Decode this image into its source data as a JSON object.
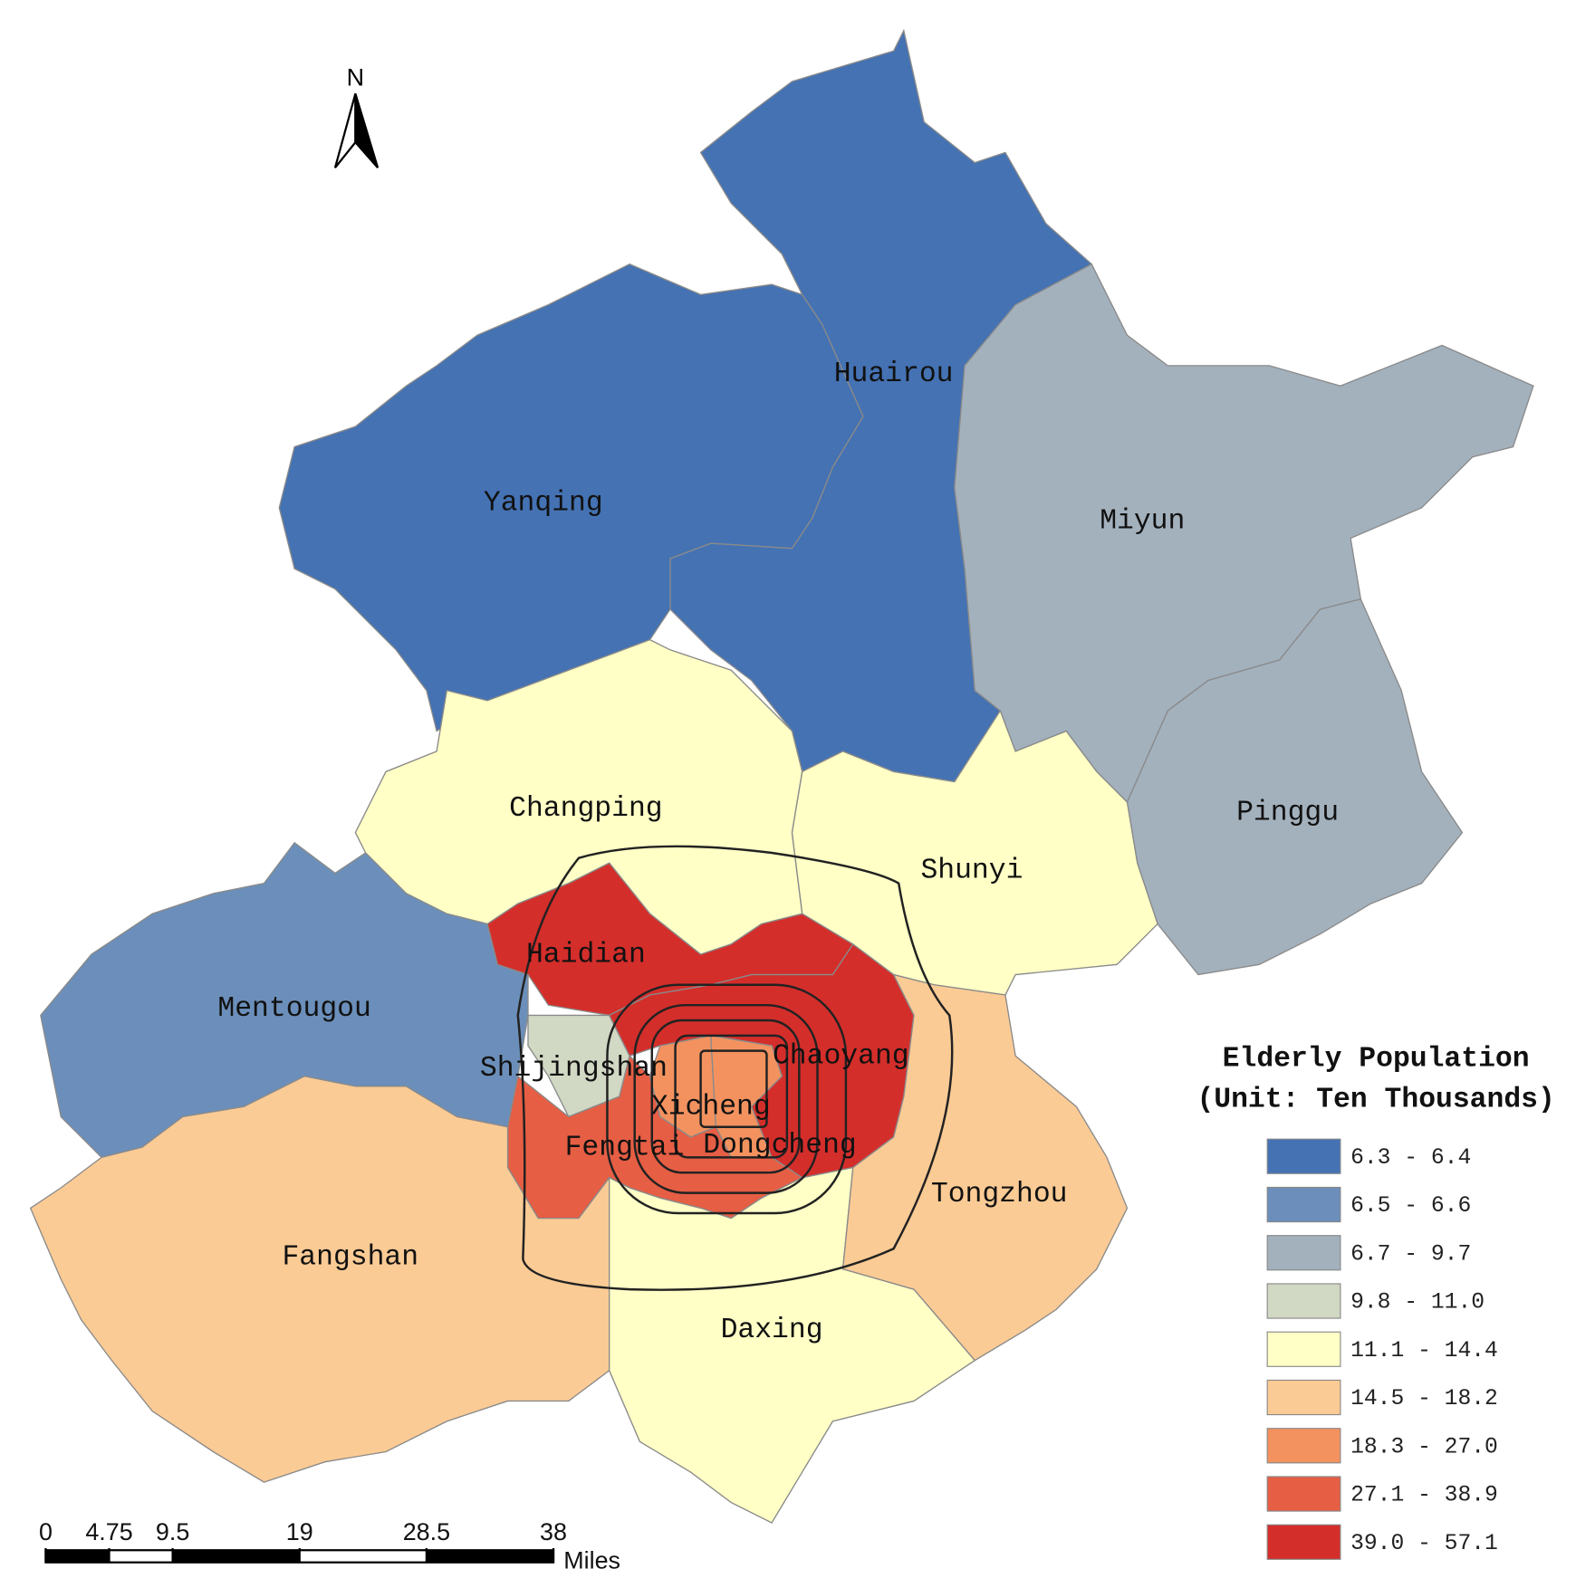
{
  "map": {
    "north": "N",
    "districts": [
      {
        "name": "Huairou",
        "color": "#4472b3"
      },
      {
        "name": "Yanqing",
        "color": "#4472b3"
      },
      {
        "name": "Miyun",
        "color": "#a3b1bd"
      },
      {
        "name": "Pinggu",
        "color": "#a3b1bd"
      },
      {
        "name": "Changping",
        "color": "#ffffc6"
      },
      {
        "name": "Shunyi",
        "color": "#ffffc6"
      },
      {
        "name": "Mentougou",
        "color": "#6b8fba"
      },
      {
        "name": "Haidian",
        "color": "#d42e2b"
      },
      {
        "name": "Shijingshan",
        "color": "#d1d8c3"
      },
      {
        "name": "Chaoyang",
        "color": "#d42e2b"
      },
      {
        "name": "Xicheng",
        "color": "#f3925f"
      },
      {
        "name": "Dongcheng",
        "color": "#f3925f"
      },
      {
        "name": "Fengtai",
        "color": "#e65e44"
      },
      {
        "name": "Fangshan",
        "color": "#fbcb95"
      },
      {
        "name": "Daxing",
        "color": "#ffffc6"
      },
      {
        "name": "Tongzhou",
        "color": "#fbcb95"
      }
    ],
    "legend": {
      "title": [
        "Elderly Population",
        "(Unit: Ten Thousands)"
      ],
      "items": [
        {
          "label": "6.3 - 6.4",
          "color": "#4472b3"
        },
        {
          "label": "6.5 - 6.6",
          "color": "#6b8fba"
        },
        {
          "label": "6.7 - 9.7",
          "color": "#a3b1bd"
        },
        {
          "label": "9.8 - 11.0",
          "color": "#d1d8c3"
        },
        {
          "label": "11.1 - 14.4",
          "color": "#ffffc6"
        },
        {
          "label": "14.5 - 18.2",
          "color": "#fbcb95"
        },
        {
          "label": "18.3 - 27.0",
          "color": "#f3925f"
        },
        {
          "label": "27.1 - 38.9",
          "color": "#e65e44"
        },
        {
          "label": "39.0 - 57.1",
          "color": "#d42e2b"
        }
      ]
    },
    "scale": {
      "ticks": [
        0,
        4.75,
        9.5,
        19,
        28.5,
        38
      ],
      "unit": "Miles"
    }
  }
}
